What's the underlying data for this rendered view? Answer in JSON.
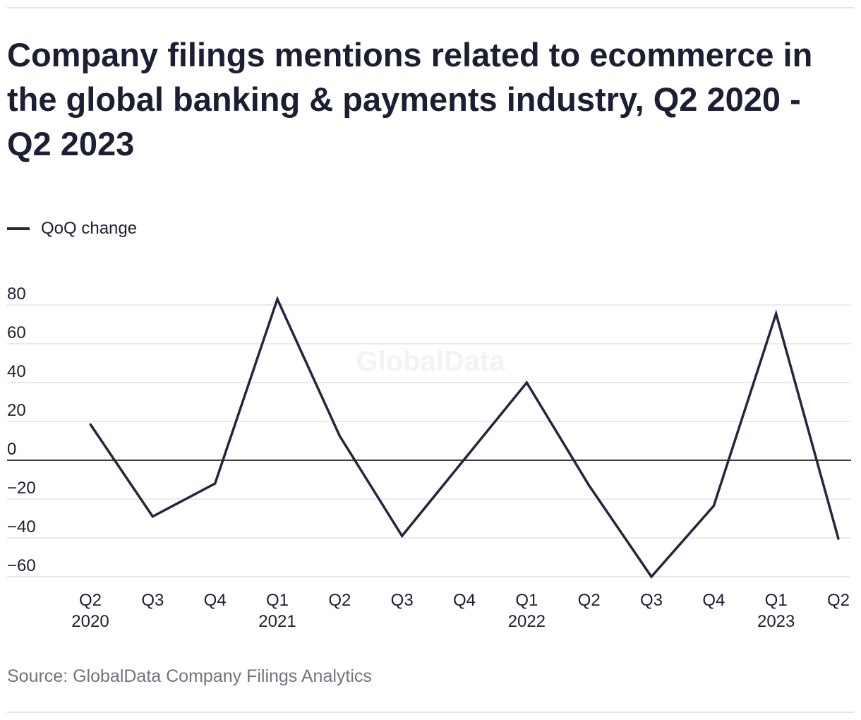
{
  "title": "Company filings mentions related to ecommerce in the global banking & payments industry, Q2 2020 - Q2 2023",
  "legend": {
    "label": "QoQ change"
  },
  "source": "Source: GlobalData Company Filings Analytics",
  "watermark": "GlobalData",
  "colors": {
    "line": "#242640",
    "grid": "#dcdde1",
    "zero": "#000000",
    "text": "#1c1f33",
    "muted": "#72737f"
  },
  "chart_data": {
    "type": "line",
    "title": "Company filings mentions related to ecommerce in the global banking & payments industry, Q2 2020 - Q2 2023",
    "xlabel": "",
    "ylabel": "",
    "ylim": [
      -60,
      80
    ],
    "yticks": [
      80,
      60,
      40,
      20,
      0,
      -20,
      -40,
      -60
    ],
    "categories": [
      [
        "Q2",
        "2020"
      ],
      [
        "Q3",
        ""
      ],
      [
        "Q4",
        ""
      ],
      [
        "Q1",
        "2021"
      ],
      [
        "Q2",
        ""
      ],
      [
        "Q3",
        ""
      ],
      [
        "Q4",
        ""
      ],
      [
        "Q1",
        "2022"
      ],
      [
        "Q2",
        ""
      ],
      [
        "Q3",
        ""
      ],
      [
        "Q4",
        ""
      ],
      [
        "Q1",
        "2023"
      ],
      [
        "Q2",
        ""
      ]
    ],
    "series": [
      {
        "name": "QoQ change",
        "values": [
          18.5,
          -29,
          -12,
          83,
          12.5,
          -39,
          0.5,
          40,
          -13,
          -60,
          -23.5,
          75.5,
          -40.5
        ]
      }
    ],
    "legend": "top-left"
  }
}
